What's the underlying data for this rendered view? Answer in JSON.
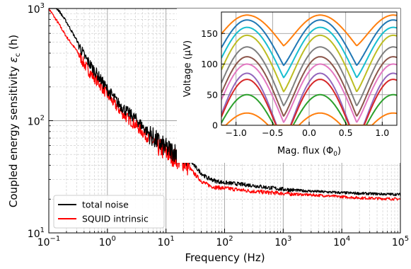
{
  "chart_data": [
    {
      "type": "line",
      "xlabel": "Frequency (Hz)",
      "ylabel": "Coupled energy sensitivity",
      "ylabel_symbol": "ε",
      "ylabel_subscript": "c",
      "ylabel_unit": "(h)",
      "xscale": "log",
      "yscale": "log",
      "xlim": [
        0.1,
        100000
      ],
      "ylim": [
        10,
        1000
      ],
      "x_ticks": [
        {
          "base": "10",
          "exp": "−1"
        },
        {
          "base": "10",
          "exp": "0"
        },
        {
          "base": "10",
          "exp": "1"
        },
        {
          "base": "10",
          "exp": "2"
        },
        {
          "base": "10",
          "exp": "3"
        },
        {
          "base": "10",
          "exp": "4"
        },
        {
          "base": "10",
          "exp": "5"
        }
      ],
      "y_ticks": [
        {
          "base": "10",
          "exp": "1"
        },
        {
          "base": "10",
          "exp": "2"
        },
        {
          "base": "10",
          "exp": "3"
        }
      ],
      "grid": "major solid, minor dashed",
      "legend_position": "lower-left",
      "series": [
        {
          "name": "total noise",
          "color": "#000000",
          "x": [
            0.1,
            0.15,
            0.2,
            0.3,
            0.4,
            0.5,
            0.7,
            1,
            1.5,
            2,
            3,
            5,
            7,
            10,
            15,
            20,
            25,
            30,
            40,
            50,
            60,
            70,
            100,
            150,
            200,
            300,
            500,
            1000,
            2000,
            5000,
            10000,
            20000,
            50000,
            100000
          ],
          "y": [
            1200,
            950,
            760,
            520,
            380,
            320,
            250,
            190,
            145,
            125,
            105,
            78,
            66,
            57,
            52,
            49,
            45,
            40,
            34,
            31,
            30,
            29,
            28,
            27.5,
            27,
            26.5,
            25.5,
            24.5,
            23.8,
            23.2,
            22.8,
            22.5,
            22.2,
            22
          ]
        },
        {
          "name": "SQUID intrinsic",
          "color": "#ff0000",
          "x": [
            0.1,
            0.15,
            0.2,
            0.3,
            0.4,
            0.5,
            0.7,
            1,
            1.5,
            2,
            3,
            5,
            7,
            10,
            15,
            20,
            25,
            30,
            40,
            50,
            60,
            70,
            100,
            150,
            200,
            300,
            500,
            1000,
            2000,
            5000,
            10000,
            20000,
            50000,
            100000
          ],
          "y": [
            1000,
            720,
            560,
            420,
            320,
            270,
            220,
            170,
            130,
            110,
            92,
            70,
            60,
            52,
            46,
            43,
            38,
            34,
            29,
            27,
            26,
            25.5,
            25,
            24.5,
            24,
            23.5,
            23,
            22.5,
            22,
            21.5,
            21,
            20.5,
            20.2,
            20
          ]
        }
      ]
    },
    {
      "type": "line",
      "xlabel": "Mag. flux",
      "xlabel_unit_symbol": "Φ",
      "xlabel_unit_subscript": "0",
      "ylabel": "Voltage (μV)",
      "xlim": [
        -1.2,
        1.2
      ],
      "ylim": [
        0,
        185
      ],
      "x_ticks": [
        "−1.0",
        "−0.5",
        "0.0",
        "0.5",
        "1.0"
      ],
      "x_tick_values": [
        -1.0,
        -0.5,
        0.0,
        0.5,
        1.0
      ],
      "y_ticks": [
        "0",
        "50",
        "100",
        "150"
      ],
      "y_tick_values": [
        0,
        50,
        100,
        150
      ],
      "grid": "major solid",
      "series": [
        {
          "color": "#ff7f0e",
          "max": 180,
          "min": 130
        },
        {
          "color": "#1f77b4",
          "max": 172,
          "min": 98
        },
        {
          "color": "#17becf",
          "max": 160,
          "min": 78
        },
        {
          "color": "#bcbd22",
          "max": 147,
          "min": 55
        },
        {
          "color": "#7f7f7f",
          "max": 128,
          "min": 32
        },
        {
          "color": "#8c564b",
          "max": 112,
          "min": 15
        },
        {
          "color": "#e377c2",
          "max": 100,
          "min": 5
        },
        {
          "color": "#9467bd",
          "max": 85,
          "min": 0
        },
        {
          "color": "#d62728",
          "max": 75,
          "min": 0
        },
        {
          "color": "#2ca02c",
          "max": 50,
          "min": 0
        },
        {
          "color": "#ff7f0e",
          "max": 20,
          "min": 0
        }
      ]
    }
  ]
}
